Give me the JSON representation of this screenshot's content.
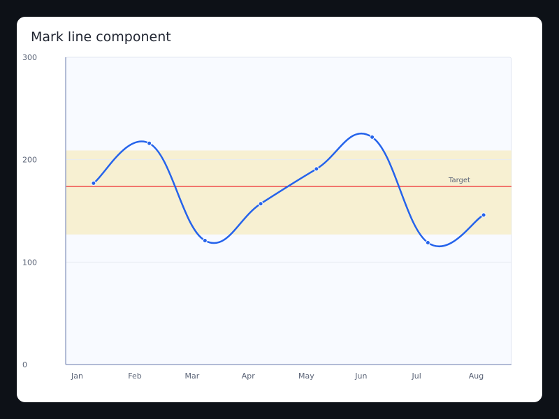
{
  "card": {
    "title": "Mark line component"
  },
  "chart_data": {
    "type": "line",
    "title": "Mark line component",
    "categories": [
      "Jan",
      "Feb",
      "Mar",
      "Apr",
      "May",
      "Jun",
      "Jul",
      "Aug"
    ],
    "series": [
      {
        "values": [
          177,
          216,
          121,
          157,
          191,
          222,
          119,
          146
        ],
        "color": "#2563eb"
      }
    ],
    "ylim": [
      0,
      300
    ],
    "yticks": [
      0,
      100,
      200,
      300
    ],
    "grid": true,
    "mark_line": {
      "label": "Target",
      "value": 174,
      "color": "#ef4444"
    },
    "mark_area": {
      "from": 127,
      "to": 209,
      "color": "#f7f0d2"
    },
    "colors": {
      "plot_background": "#f8faff",
      "gridline": "#e7ebf3",
      "axis": "#9aa6c8"
    }
  }
}
